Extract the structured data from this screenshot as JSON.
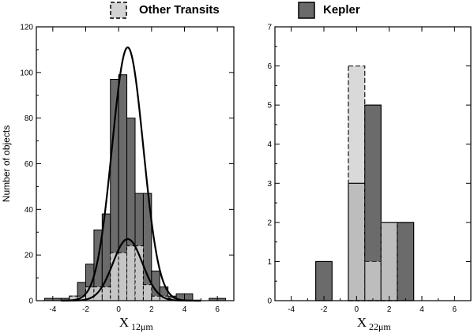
{
  "legend": [
    {
      "label": "Other Transits",
      "color": "#d4d4d4",
      "border": "dashed"
    },
    {
      "label": "Kepler",
      "color": "#6b6b6b",
      "border": "solid"
    }
  ],
  "colors": {
    "kepler": "#6b6b6b",
    "other": "#c6c6c6",
    "other_over": "#d9d9d9",
    "axis": "#000000"
  },
  "chart_data": [
    {
      "type": "bar",
      "histogram": true,
      "xlabel_main": "X",
      "xlabel_sub": "12μm",
      "ylabel": "Number of objects",
      "xlim": [
        -5,
        7
      ],
      "ylim": [
        0,
        120
      ],
      "xticks": [
        -4,
        -2,
        0,
        2,
        4,
        6
      ],
      "yticks": [
        0,
        20,
        40,
        60,
        80,
        100,
        120
      ],
      "series": [
        {
          "name": "Kepler",
          "bins": [
            [
              -4.5,
              -3.5,
              1
            ],
            [
              -3.5,
              -3,
              1
            ],
            [
              -3,
              -2.5,
              2
            ],
            [
              -2.5,
              -2,
              8
            ],
            [
              -2,
              -1.5,
              16
            ],
            [
              -1.5,
              -1,
              31
            ],
            [
              -1,
              -0.5,
              38
            ],
            [
              -0.5,
              0,
              97
            ],
            [
              0,
              0.5,
              99
            ],
            [
              0.5,
              1,
              80
            ],
            [
              1,
              1.5,
              47
            ],
            [
              1.5,
              2,
              47
            ],
            [
              2,
              2.5,
              13
            ],
            [
              2.5,
              3,
              6
            ],
            [
              3,
              3.5,
              2
            ],
            [
              3.5,
              4,
              3
            ],
            [
              4,
              4.5,
              3
            ],
            [
              5.5,
              6.5,
              1
            ]
          ]
        },
        {
          "name": "Other Transits",
          "bins": [
            [
              -3,
              -2.5,
              2
            ],
            [
              -2.5,
              -2,
              2
            ],
            [
              -2,
              -1.5,
              6
            ],
            [
              -1.5,
              -1,
              6
            ],
            [
              -1,
              -0.5,
              6
            ],
            [
              -0.5,
              0,
              21
            ],
            [
              0,
              0.5,
              21
            ],
            [
              0.5,
              1,
              24
            ],
            [
              1,
              1.5,
              24
            ],
            [
              1.5,
              2,
              7
            ],
            [
              2,
              2.5,
              2
            ],
            [
              2.5,
              3,
              2
            ],
            [
              3,
              3.5,
              1
            ]
          ]
        }
      ],
      "fits": [
        {
          "series": "Kepler",
          "amplitude": 111,
          "mean": 0.55,
          "sigma": 0.95
        },
        {
          "series": "Other Transits",
          "amplitude": 27,
          "mean": 0.55,
          "sigma": 0.9
        }
      ]
    },
    {
      "type": "bar",
      "histogram": true,
      "xlabel_main": "X",
      "xlabel_sub": "22μm",
      "ylabel": "",
      "xlim": [
        -5,
        7
      ],
      "ylim": [
        0,
        7
      ],
      "xticks": [
        -4,
        -2,
        0,
        2,
        4,
        6
      ],
      "yticks": [
        0,
        1,
        2,
        3,
        4,
        5,
        6,
        7
      ],
      "series": [
        {
          "name": "Kepler",
          "bins": [
            [
              -2.5,
              -1.5,
              1
            ],
            [
              -0.5,
              0.5,
              3
            ],
            [
              0.5,
              1.5,
              5
            ],
            [
              1.5,
              2.5,
              2
            ],
            [
              2.5,
              3.5,
              2
            ]
          ]
        },
        {
          "name": "Other Transits",
          "bins": [
            [
              -0.5,
              0.5,
              6
            ],
            [
              0.5,
              1.5,
              1
            ],
            [
              1.5,
              2.5,
              2
            ]
          ]
        }
      ]
    }
  ]
}
